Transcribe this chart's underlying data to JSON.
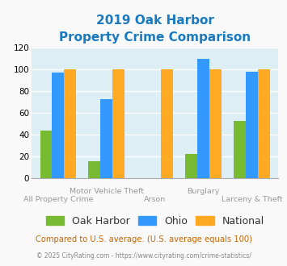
{
  "title_line1": "2019 Oak Harbor",
  "title_line2": "Property Crime Comparison",
  "title_color": "#1a7abf",
  "group_labels_top": [
    "",
    "Motor Vehicle Theft",
    "",
    "Burglary",
    ""
  ],
  "group_labels_bottom": [
    "All Property Crime",
    "",
    "Arson",
    "",
    "Larceny & Theft"
  ],
  "series": [
    {
      "name": "Oak Harbor",
      "color": "#77bb33",
      "values": [
        44,
        16,
        0,
        22,
        53
      ]
    },
    {
      "name": "Ohio",
      "color": "#3399ff",
      "values": [
        97,
        73,
        0,
        110,
        98
      ]
    },
    {
      "name": "National",
      "color": "#ffaa22",
      "values": [
        100,
        100,
        100,
        100,
        100
      ]
    }
  ],
  "ylim": [
    0,
    120
  ],
  "yticks": [
    0,
    20,
    40,
    60,
    80,
    100,
    120
  ],
  "bar_width": 0.25,
  "plot_bg_color": "#ddeef5",
  "fig_bg_color": "#f9f9f9",
  "grid_color": "#ffffff",
  "footnote": "Compared to U.S. average. (U.S. average equals 100)",
  "footnote_color": "#cc6600",
  "credit": "© 2025 CityRating.com - https://www.cityrating.com/crime-statistics/",
  "credit_color": "#888888",
  "label_color": "#999999",
  "legend_fontsize": 9,
  "axis_fontsize": 7.5,
  "label_fontsize": 6.8,
  "title_fontsize": 11
}
